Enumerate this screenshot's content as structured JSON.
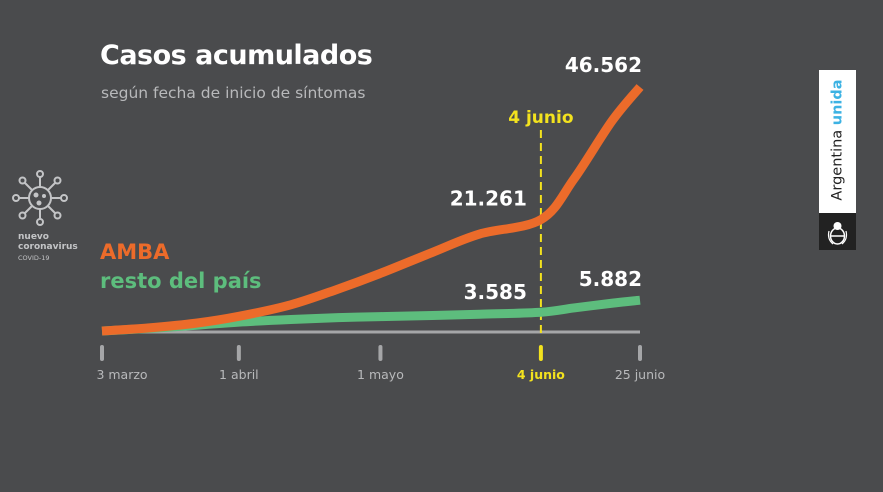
{
  "title": "Casos acumulados",
  "subtitle": "según fecha de inicio de síntomas",
  "virus_label": {
    "line1": "nuevo",
    "line2": "coronavirus",
    "line3": "COVID-19"
  },
  "brand": {
    "text": "Argentina",
    "highlight": "unida"
  },
  "colors": {
    "background": "#4a4b4d",
    "amba": "#ec6b2a",
    "resto": "#5dbd7d",
    "marker": "#f3e21e",
    "axis": "#a5a6a8",
    "brand_accent": "#3cb2e3"
  },
  "chart_data": {
    "type": "line",
    "title": "Casos acumulados",
    "subtitle": "según fecha de inicio de síntomas",
    "x_ticks": [
      "3 marzo",
      "1 abril",
      "1 mayo",
      "4 junio",
      "25 junio"
    ],
    "x_tick_days": [
      0,
      29,
      59,
      93,
      114
    ],
    "highlight_tick": "4 junio",
    "marker_label": "4 junio",
    "ylim": [
      0,
      50000
    ],
    "series": [
      {
        "name": "AMBA",
        "color": "#ec6b2a",
        "x": [
          0,
          10,
          20,
          29,
          40,
          50,
          59,
          70,
          80,
          93,
          100,
          108,
          114
        ],
        "y": [
          0,
          600,
          1500,
          2800,
          5000,
          8000,
          11000,
          15000,
          18500,
          21261,
          29000,
          40000,
          46562
        ]
      },
      {
        "name": "resto del país",
        "color": "#5dbd7d",
        "x": [
          0,
          10,
          20,
          29,
          40,
          50,
          59,
          70,
          80,
          93,
          100,
          108,
          114
        ],
        "y": [
          0,
          500,
          1100,
          1700,
          2200,
          2550,
          2750,
          2950,
          3200,
          3585,
          4400,
          5300,
          5882
        ]
      }
    ],
    "data_labels": [
      {
        "series": "AMBA",
        "at": "4 junio",
        "text": "21.261"
      },
      {
        "series": "AMBA",
        "at": "25 junio",
        "text": "46.562"
      },
      {
        "series": "resto del país",
        "at": "4 junio",
        "text": "3.585"
      },
      {
        "series": "resto del país",
        "at": "25 junio",
        "text": "5.882"
      }
    ],
    "legend": [
      {
        "label": "AMBA",
        "color": "#ec6b2a"
      },
      {
        "label": "resto del país",
        "color": "#5dbd7d"
      }
    ],
    "legend_position": "left"
  }
}
